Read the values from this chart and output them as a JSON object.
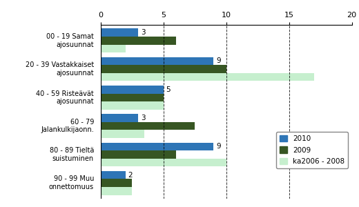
{
  "categories": [
    "00 - 19 Samat\najosuunnat",
    "20 - 39 Vastakkaiset\najosuunnat",
    "40 - 59 Risteävät\najosuunnat",
    "60 - 79\nJalankulkijaonn.",
    "80 - 89 Tieltä\nsuistuminen",
    "90 - 99 Muu\nonnettomuus"
  ],
  "series": {
    "2010": [
      3,
      9,
      5,
      3,
      9,
      2
    ],
    "2009": [
      6,
      10,
      5,
      7.5,
      6,
      2.5
    ],
    "ka2006 - 2008": [
      2,
      17,
      5,
      3.5,
      10,
      2.5
    ]
  },
  "colors": {
    "2010": "#2E75B6",
    "2009": "#375623",
    "ka2006 - 2008": "#C6EFCE"
  },
  "xlim": [
    0,
    20
  ],
  "xticks": [
    0,
    5,
    10,
    15,
    20
  ],
  "bar_height": 0.28,
  "background_color": "#FFFFFF",
  "dashed_lines": [
    5,
    10,
    15
  ]
}
